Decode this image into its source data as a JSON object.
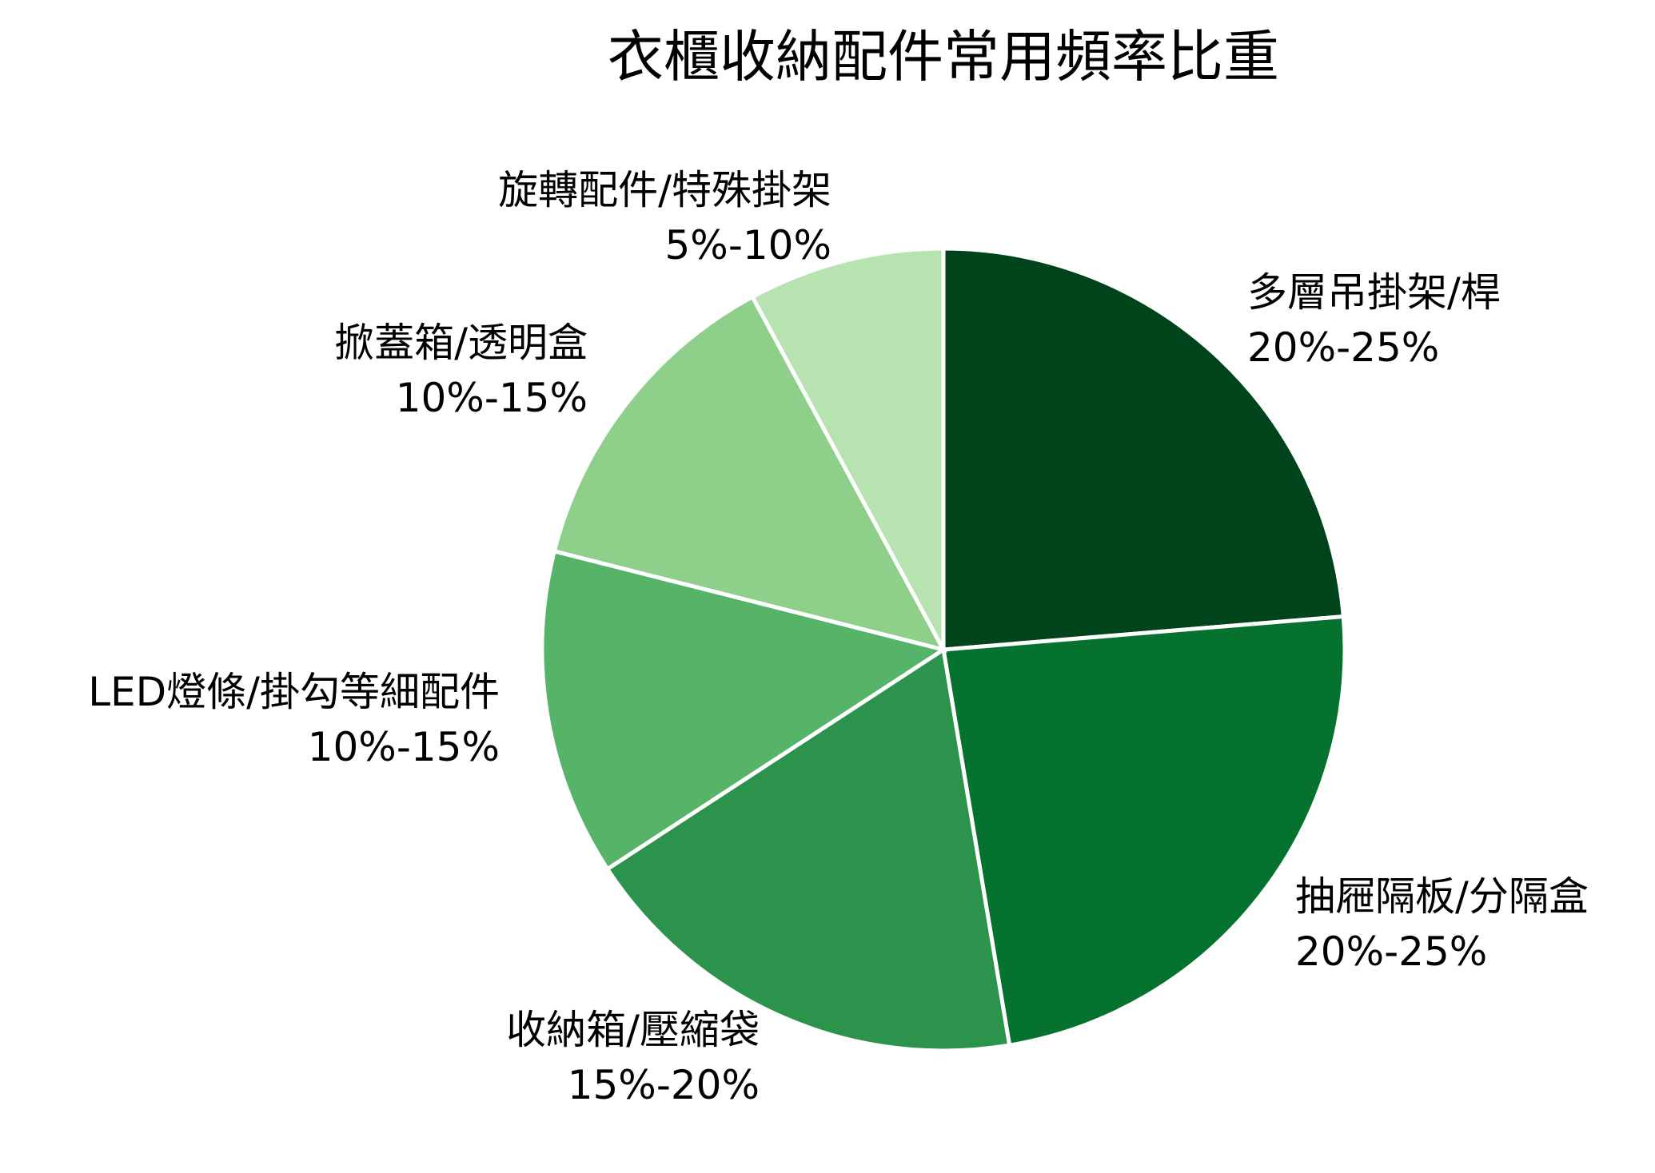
{
  "chart_data": {
    "type": "pie",
    "title": "衣櫃收納配件常用頻率比重",
    "start_angle": "12 o'clock",
    "direction": "clockwise",
    "slices": [
      {
        "label": "多層吊掛架/桿",
        "range": "20%-25%",
        "value": 22.5,
        "color": "#00441b"
      },
      {
        "label": "抽屜隔板/分隔盒",
        "range": "20%-25%",
        "value": 22.5,
        "color": "#06722f"
      },
      {
        "label": "收納箱/壓縮袋",
        "range": "15%-20%",
        "value": 17.5,
        "color": "#2b934b"
      },
      {
        "label": "LED燈條/掛勾等細配件",
        "range": "10%-15%",
        "value": 12.5,
        "color": "#56b468"
      },
      {
        "label": "掀蓋箱/透明盒",
        "range": "10%-15%",
        "value": 12.5,
        "color": "#8ecf89"
      },
      {
        "label": "旋轉配件/特殊掛架",
        "range": "5%-10%",
        "value": 7.5,
        "color": "#b7e3b1"
      }
    ]
  }
}
